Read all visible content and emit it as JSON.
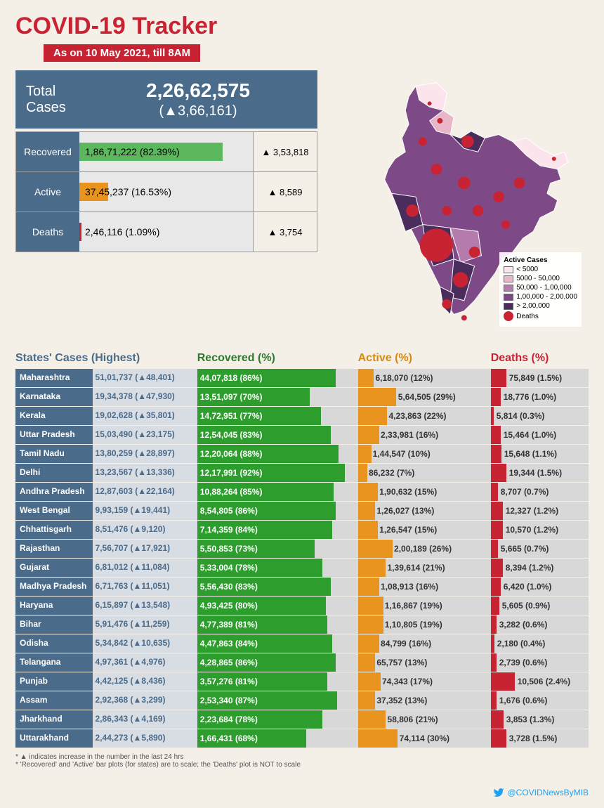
{
  "header": {
    "title": "COVID-19 Tracker",
    "subtitle": "As on 10 May 2021, till 8AM"
  },
  "summary": {
    "total_label": "Total Cases",
    "total_value": "2,26,62,575",
    "total_delta": "(▲3,66,161)",
    "rows": [
      {
        "label": "Recovered",
        "value": "1,86,71,222 (82.39%)",
        "pct": 82.39,
        "color": "#5cb85c",
        "delta": "▲ 3,53,818"
      },
      {
        "label": "Active",
        "value": "37,45,237 (16.53%)",
        "pct": 16.53,
        "color": "#e8941e",
        "delta": "▲ 8,589"
      },
      {
        "label": "Deaths",
        "value": "2,46,116 (1.09%)",
        "pct": 1.09,
        "color": "#c82333",
        "delta": "▲ 3,754"
      }
    ]
  },
  "map": {
    "legend_title": "Active Cases",
    "buckets": [
      {
        "label": "< 5000",
        "color": "#fce4ec"
      },
      {
        "label": "5000 - 50,000",
        "color": "#e8b5c9"
      },
      {
        "label": "50,000 - 1,00,000",
        "color": "#b67bad"
      },
      {
        "label": "1,00,000 - 2,00,000",
        "color": "#7d4a87"
      },
      {
        "label": "> 2,00,000",
        "color": "#4a2d5c"
      }
    ],
    "deaths_label": "Deaths",
    "deaths_color": "#c82333"
  },
  "table": {
    "headers": {
      "state": "States' Cases (Highest)",
      "rec": "Recovered (%)",
      "act": "Active (%)",
      "dth": "Deaths (%)"
    },
    "max_cases": 5101737,
    "rows": [
      {
        "state": "Maharashtra",
        "cases": "51,01,737 (▲48,401)",
        "rec_t": "44,07,818 (86%)",
        "rec_p": 86,
        "act_t": "6,18,070 (12%)",
        "act_p": 12,
        "dth_t": "75,849 (1.5%)",
        "dth_p": 1.5,
        "dth_bar": 22
      },
      {
        "state": "Karnataka",
        "cases": "19,34,378 (▲47,930)",
        "rec_t": "13,51,097 (70%)",
        "rec_p": 70,
        "act_t": "5,64,505 (29%)",
        "act_p": 29,
        "dth_t": "18,776 (1.0%)",
        "dth_p": 1.0,
        "dth_bar": 14
      },
      {
        "state": "Kerala",
        "cases": "19,02,628 (▲35,801)",
        "rec_t": "14,72,951 (77%)",
        "rec_p": 77,
        "act_t": "4,23,863 (22%)",
        "act_p": 22,
        "dth_t": "5,814 (0.3%)",
        "dth_p": 0.3,
        "dth_bar": 4
      },
      {
        "state": "Uttar Pradesh",
        "cases": "15,03,490 (▲23,175)",
        "rec_t": "12,54,045 (83%)",
        "rec_p": 83,
        "act_t": "2,33,981 (16%)",
        "act_p": 16,
        "dth_t": "15,464 (1.0%)",
        "dth_p": 1.0,
        "dth_bar": 14
      },
      {
        "state": "Tamil Nadu",
        "cases": "13,80,259 (▲28,897)",
        "rec_t": "12,20,064 (88%)",
        "rec_p": 88,
        "act_t": "1,44,547 (10%)",
        "act_p": 10,
        "dth_t": "15,648 (1.1%)",
        "dth_p": 1.1,
        "dth_bar": 15
      },
      {
        "state": "Delhi",
        "cases": "13,23,567 (▲13,336)",
        "rec_t": "12,17,991 (92%)",
        "rec_p": 92,
        "act_t": "86,232 (7%)",
        "act_p": 7,
        "dth_t": "19,344 (1.5%)",
        "dth_p": 1.5,
        "dth_bar": 22
      },
      {
        "state": "Andhra Pradesh",
        "cases": "12,87,603 (▲22,164)",
        "rec_t": "10,88,264 (85%)",
        "rec_p": 85,
        "act_t": "1,90,632 (15%)",
        "act_p": 15,
        "dth_t": "8,707 (0.7%)",
        "dth_p": 0.7,
        "dth_bar": 10
      },
      {
        "state": "West Bengal",
        "cases": "9,93,159 (▲19,441)",
        "rec_t": "8,54,805 (86%)",
        "rec_p": 86,
        "act_t": "1,26,027 (13%)",
        "act_p": 13,
        "dth_t": "12,327 (1.2%)",
        "dth_p": 1.2,
        "dth_bar": 17
      },
      {
        "state": "Chhattisgarh",
        "cases": "8,51,476 (▲9,120)",
        "rec_t": "7,14,359 (84%)",
        "rec_p": 84,
        "act_t": "1,26,547 (15%)",
        "act_p": 15,
        "dth_t": "10,570 (1.2%)",
        "dth_p": 1.2,
        "dth_bar": 17
      },
      {
        "state": "Rajasthan",
        "cases": "7,56,707 (▲17,921)",
        "rec_t": "5,50,853 (73%)",
        "rec_p": 73,
        "act_t": "2,00,189 (26%)",
        "act_p": 26,
        "dth_t": "5,665 (0.7%)",
        "dth_p": 0.7,
        "dth_bar": 10
      },
      {
        "state": "Gujarat",
        "cases": "6,81,012 (▲11,084)",
        "rec_t": "5,33,004 (78%)",
        "rec_p": 78,
        "act_t": "1,39,614 (21%)",
        "act_p": 21,
        "dth_t": "8,394 (1.2%)",
        "dth_p": 1.2,
        "dth_bar": 17
      },
      {
        "state": "Madhya Pradesh",
        "cases": "6,71,763 (▲11,051)",
        "rec_t": "5,56,430 (83%)",
        "rec_p": 83,
        "act_t": "1,08,913 (16%)",
        "act_p": 16,
        "dth_t": "6,420 (1.0%)",
        "dth_p": 1.0,
        "dth_bar": 14
      },
      {
        "state": "Haryana",
        "cases": "6,15,897 (▲13,548)",
        "rec_t": "4,93,425 (80%)",
        "rec_p": 80,
        "act_t": "1,16,867 (19%)",
        "act_p": 19,
        "dth_t": "5,605 (0.9%)",
        "dth_p": 0.9,
        "dth_bar": 12
      },
      {
        "state": "Bihar",
        "cases": "5,91,476 (▲11,259)",
        "rec_t": "4,77,389 (81%)",
        "rec_p": 81,
        "act_t": "1,10,805 (19%)",
        "act_p": 19,
        "dth_t": "3,282 (0.6%)",
        "dth_p": 0.6,
        "dth_bar": 8
      },
      {
        "state": "Odisha",
        "cases": "5,34,842 (▲10,635)",
        "rec_t": "4,47,863 (84%)",
        "rec_p": 84,
        "act_t": "84,799 (16%)",
        "act_p": 16,
        "dth_t": "2,180 (0.4%)",
        "dth_p": 0.4,
        "dth_bar": 5
      },
      {
        "state": "Telangana",
        "cases": "4,97,361 (▲4,976)",
        "rec_t": "4,28,865 (86%)",
        "rec_p": 86,
        "act_t": "65,757 (13%)",
        "act_p": 13,
        "dth_t": "2,739 (0.6%)",
        "dth_p": 0.6,
        "dth_bar": 8
      },
      {
        "state": "Punjab",
        "cases": "4,42,125 (▲8,436)",
        "rec_t": "3,57,276 (81%)",
        "rec_p": 81,
        "act_t": "74,343 (17%)",
        "act_p": 17,
        "dth_t": "10,506 (2.4%)",
        "dth_p": 2.4,
        "dth_bar": 34
      },
      {
        "state": "Assam",
        "cases": "2,92,368 (▲3,299)",
        "rec_t": "2,53,340 (87%)",
        "rec_p": 87,
        "act_t": "37,352 (13%)",
        "act_p": 13,
        "dth_t": "1,676 (0.6%)",
        "dth_p": 0.6,
        "dth_bar": 8
      },
      {
        "state": "Jharkhand",
        "cases": "2,86,343 (▲4,169)",
        "rec_t": "2,23,684 (78%)",
        "rec_p": 78,
        "act_t": "58,806 (21%)",
        "act_p": 21,
        "dth_t": "3,853 (1.3%)",
        "dth_p": 1.3,
        "dth_bar": 18
      },
      {
        "state": "Uttarakhand",
        "cases": "2,44,273 (▲5,890)",
        "rec_t": "1,66,431 (68%)",
        "rec_p": 68,
        "act_t": "74,114 (30%)",
        "act_p": 30,
        "dth_t": "3,728 (1.5%)",
        "dth_p": 1.5,
        "dth_bar": 22
      }
    ]
  },
  "footnotes": [
    "* ▲ indicates increase in the number in the last 24 hrs",
    "* 'Recovered' and 'Active' bar plots (for states) are to scale; the 'Deaths' plot is NOT to scale"
  ],
  "twitter": "@COVIDNewsByMIB"
}
